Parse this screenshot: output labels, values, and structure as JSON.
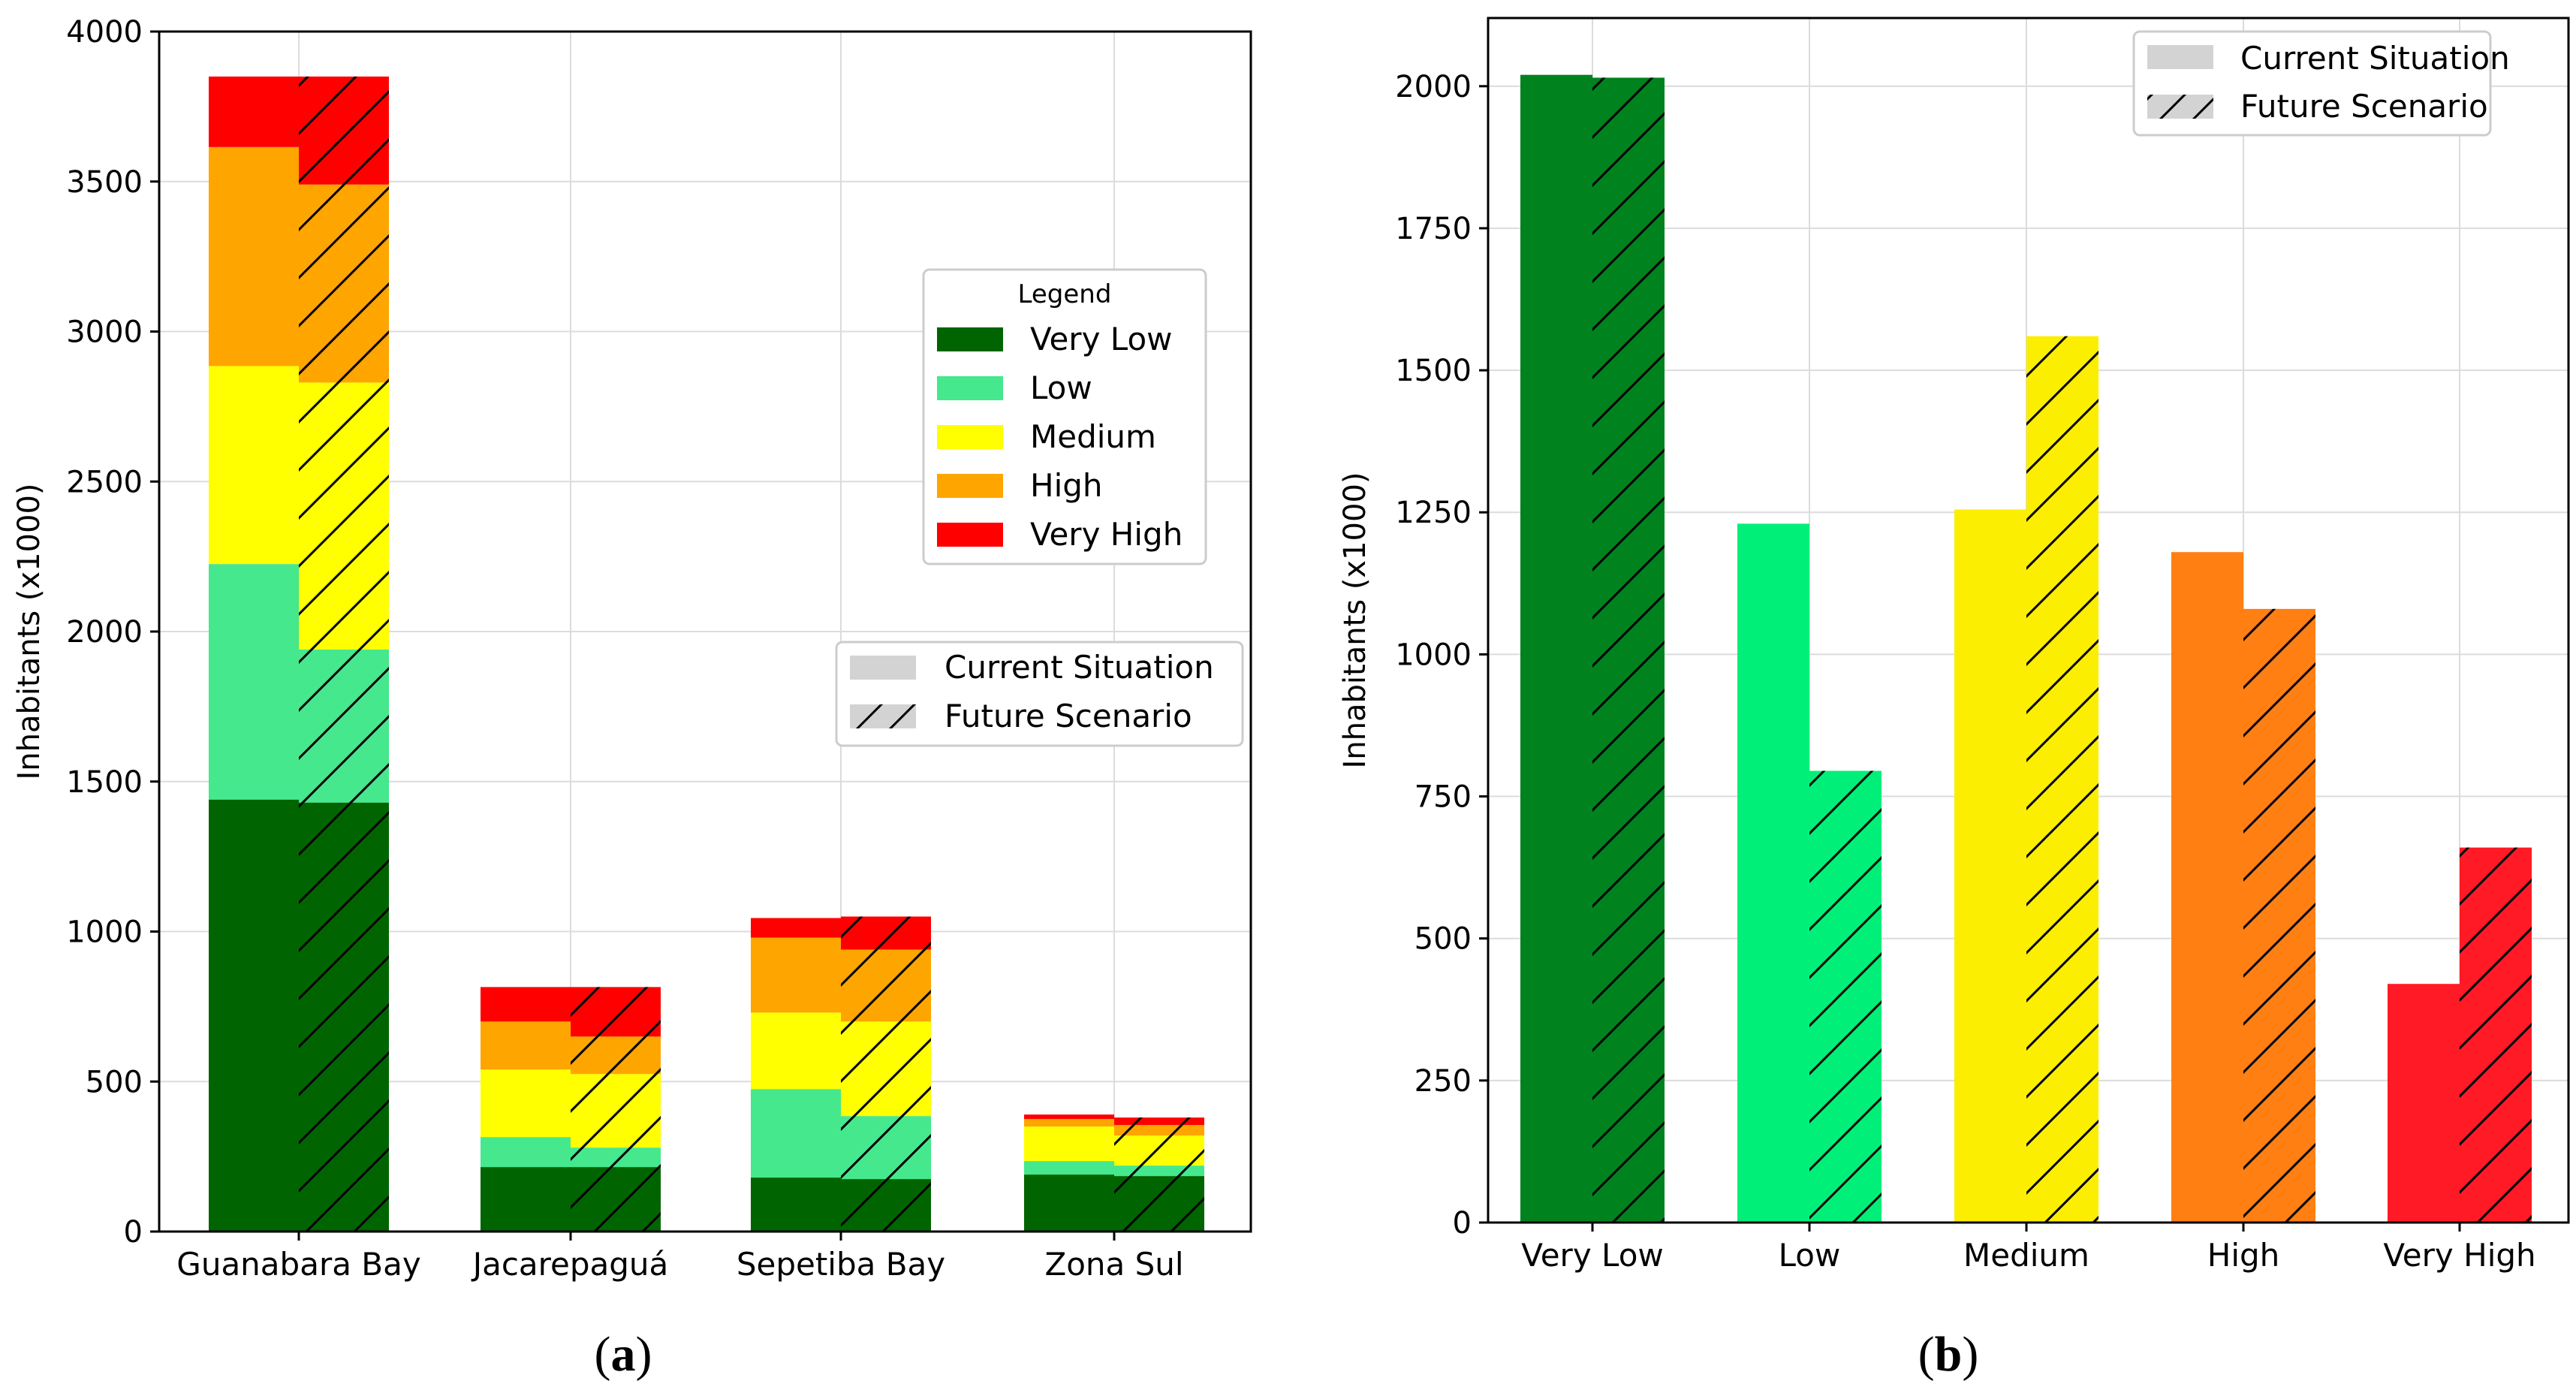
{
  "colors": {
    "a": {
      "Very Low": "#006400",
      "Low": "#45e88d",
      "Medium": "#ffff00",
      "High": "#ffa500",
      "Very High": "#ff0000"
    },
    "b": [
      "#00821e",
      "#00ef79",
      "#fcee00",
      "#ff7f13",
      "#ff1a25"
    ],
    "legend_gray": "#d3d3d3"
  },
  "chart_data": [
    {
      "id": "a",
      "type": "bar",
      "stacked": true,
      "categories": [
        "Guanabara Bay",
        "Jacarepaguá",
        "Sepetiba Bay",
        "Zona Sul"
      ],
      "ylabel": "Inhabitants (x1000)",
      "ylim": [
        0,
        4000
      ],
      "yticks": [
        0,
        500,
        1000,
        1500,
        2000,
        2500,
        3000,
        3500,
        4000
      ],
      "grid": true,
      "stack_levels": [
        "Very Low",
        "Low",
        "Medium",
        "High",
        "Very High"
      ],
      "series": [
        {
          "name": "Current Situation",
          "stacks": [
            [
              1440,
              785,
              660,
              730,
              235
            ],
            [
              215,
              100,
              225,
              160,
              115
            ],
            [
              180,
              295,
              255,
              250,
              65
            ],
            [
              190,
              45,
              115,
              25,
              15
            ]
          ]
        },
        {
          "name": "Future Scenario",
          "hatched": true,
          "stacks": [
            [
              1430,
              510,
              890,
              660,
              360
            ],
            [
              215,
              65,
              245,
              125,
              165
            ],
            [
              175,
              210,
              315,
              240,
              110
            ],
            [
              185,
              35,
              100,
              35,
              25
            ]
          ]
        }
      ],
      "legend_title": "Legend",
      "legend_color_entries": [
        "Very Low",
        "Low",
        "Medium",
        "High",
        "Very High"
      ],
      "legend_scenario_entries": [
        "Current Situation",
        "Future Scenario"
      ],
      "caption": "a"
    },
    {
      "id": "b",
      "type": "bar",
      "categories": [
        "Very Low",
        "Low",
        "Medium",
        "High",
        "Very High"
      ],
      "ylabel": "Inhabitants (x1000)",
      "ylim": [
        0,
        2120
      ],
      "yticks": [
        0,
        250,
        500,
        750,
        1000,
        1250,
        1500,
        1750,
        2000
      ],
      "grid": true,
      "series": [
        {
          "name": "Current Situation",
          "values": [
            2020,
            1230,
            1255,
            1180,
            420
          ]
        },
        {
          "name": "Future Scenario",
          "hatched": true,
          "values": [
            2015,
            795,
            1560,
            1080,
            660
          ]
        }
      ],
      "legend_entries": [
        "Current Situation",
        "Future Scenario"
      ],
      "legend_position": "top-right",
      "caption": "b"
    }
  ]
}
